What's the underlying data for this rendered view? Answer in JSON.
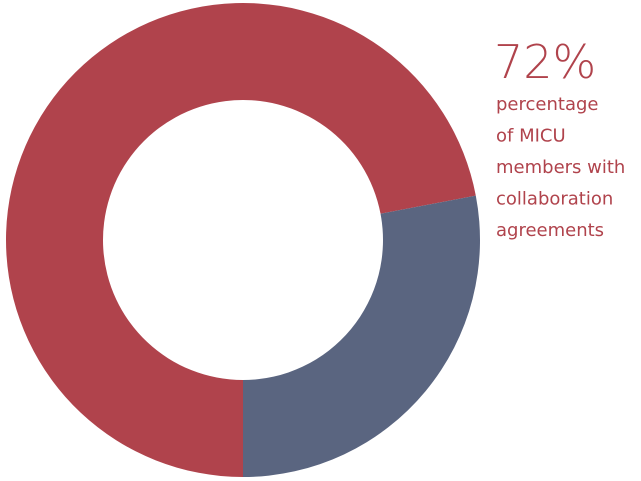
{
  "chart_data": {
    "type": "pie",
    "donut": true,
    "values": [
      72,
      28
    ],
    "colors": [
      "#b0434c",
      "#5a6580"
    ],
    "value_labels": [
      "72%",
      null
    ],
    "annotation_lines": [
      "percentage",
      "of MICU",
      "members with",
      "collaboration",
      "agreements"
    ]
  }
}
